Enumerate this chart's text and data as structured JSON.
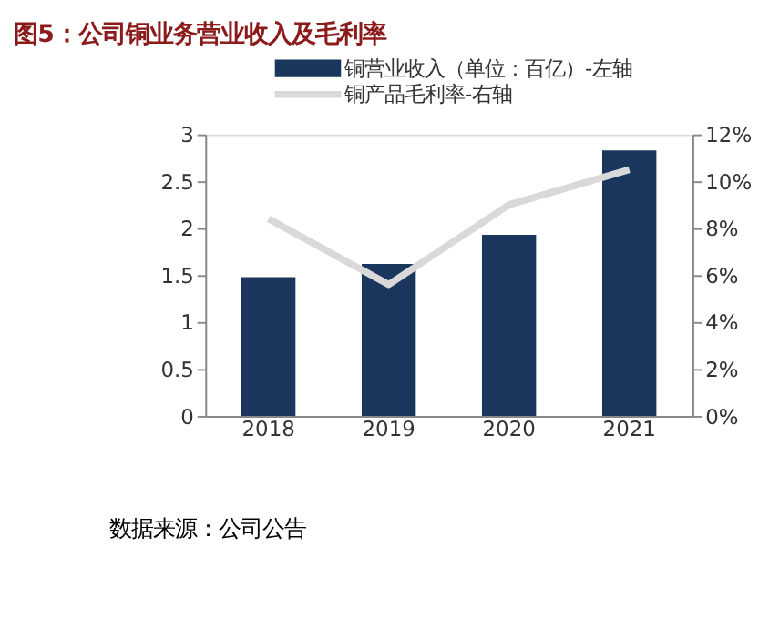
{
  "chart_data": {
    "type": "bar",
    "title": "图5：公司铜业务营业收入及毛利率",
    "categories": [
      "2018",
      "2019",
      "2020",
      "2021"
    ],
    "series": [
      {
        "name": "铜营业收入（单位：百亿）-左轴",
        "color": "#1b365d",
        "values": [
          1.48,
          1.62,
          1.93,
          2.83
        ]
      },
      {
        "name": "铜产品毛利率-右轴",
        "type": "line",
        "axis": "y2",
        "color": "#d9d9d9",
        "values": [
          8.4,
          5.6,
          9.0,
          10.5
        ]
      }
    ],
    "ylim": [
      0,
      3
    ],
    "yticks": [
      0,
      0.5,
      1,
      1.5,
      2,
      2.5,
      3
    ],
    "y2lim": [
      0,
      12
    ],
    "y2ticks": [
      {
        "value": 0,
        "label": "0%"
      },
      {
        "value": 2,
        "label": "2%"
      },
      {
        "value": 4,
        "label": "4%"
      },
      {
        "value": 6,
        "label": "6%"
      },
      {
        "value": 8,
        "label": "8%"
      },
      {
        "value": 10,
        "label": "10%"
      },
      {
        "value": 12,
        "label": "12%"
      }
    ],
    "grid": false,
    "legend": "top",
    "annotations": [
      "数据来源：公司公告"
    ]
  }
}
